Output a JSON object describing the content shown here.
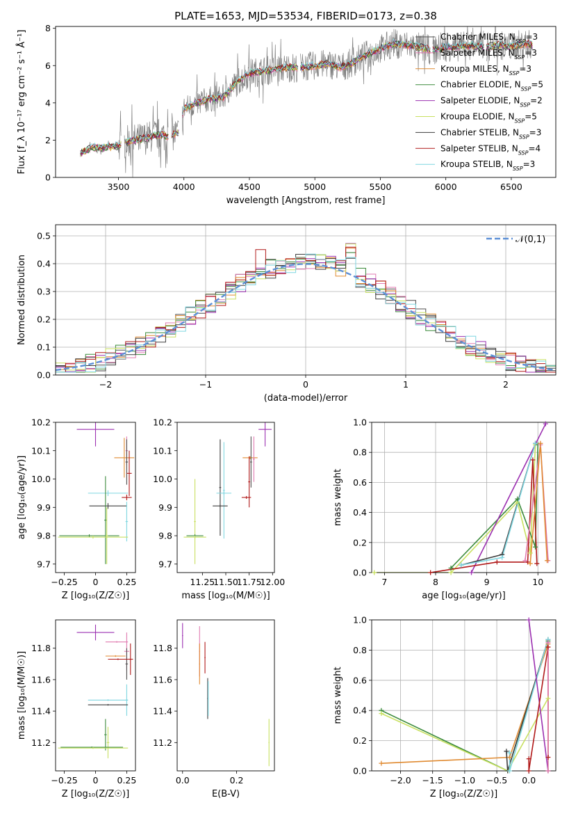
{
  "figure": {
    "title": "PLATE=1653, MJD=53534, FIBERID=0173, z=0.38"
  },
  "colors": {
    "chabrier_miles": "#4d4d4d",
    "salpeter_miles": "#e07ab0",
    "kroupa_miles": "#e08a30",
    "chabrier_elodie": "#3a8a3a",
    "salpeter_elodie": "#9b2fb0",
    "kroupa_elodie": "#c8e060",
    "chabrier_stelib": "#3c3c3c",
    "salpeter_stelib": "#b01818",
    "kroupa_stelib": "#7fd6e0",
    "data": "#808080",
    "normal": "#5b8fd6"
  },
  "chart_data": [
    {
      "id": "spectrum",
      "type": "line",
      "xlabel": "wavelength [Angstrom, rest frame]",
      "ylabel": "Flux [f_λ 10⁻¹⁷ erg cm⁻² s⁻¹ Å⁻¹]",
      "xlim": [
        3020,
        6840
      ],
      "ylim": [
        0,
        8.1
      ],
      "xticks": [
        3500,
        4000,
        4500,
        5000,
        5500,
        6000,
        6500
      ],
      "yticks": [
        0,
        2,
        4,
        6,
        8
      ],
      "legend_position": "top-right",
      "continuum": [
        [
          3210,
          1.3
        ],
        [
          3300,
          1.6
        ],
        [
          3400,
          1.6
        ],
        [
          3500,
          1.7
        ],
        [
          3560,
          1.9
        ],
        [
          3700,
          2.1
        ],
        [
          3800,
          2.3
        ],
        [
          3880,
          2.2
        ],
        [
          3960,
          2.4
        ],
        [
          4000,
          3.7
        ],
        [
          4100,
          4.0
        ],
        [
          4200,
          4.2
        ],
        [
          4300,
          4.3
        ],
        [
          4400,
          5.1
        ],
        [
          4500,
          5.6
        ],
        [
          4600,
          5.7
        ],
        [
          4700,
          5.8
        ],
        [
          4800,
          5.9
        ],
        [
          4900,
          5.9
        ],
        [
          5000,
          6.0
        ],
        [
          5100,
          6.1
        ],
        [
          5200,
          5.9
        ],
        [
          5300,
          6.2
        ],
        [
          5400,
          6.6
        ],
        [
          5500,
          6.9
        ],
        [
          5600,
          7.2
        ],
        [
          5700,
          7.1
        ],
        [
          5800,
          7.0
        ],
        [
          5900,
          6.8
        ],
        [
          6000,
          7.0
        ],
        [
          6100,
          7.0
        ],
        [
          6200,
          7.1
        ],
        [
          6300,
          7.0
        ],
        [
          6400,
          7.1
        ],
        [
          6500,
          7.0
        ],
        [
          6600,
          7.2
        ],
        [
          6660,
          7.1
        ]
      ],
      "series": [
        {
          "name": "Chabrier MILES, N_SSP=3",
          "color_key": "chabrier_miles"
        },
        {
          "name": "Salpeter MILES, N_SSP=3",
          "color_key": "salpeter_miles"
        },
        {
          "name": "Kroupa MILES, N_SSP=3",
          "color_key": "kroupa_miles"
        },
        {
          "name": "Chabrier ELODIE, N_SSP=5",
          "color_key": "chabrier_elodie"
        },
        {
          "name": "Salpeter ELODIE, N_SSP=2",
          "color_key": "salpeter_elodie"
        },
        {
          "name": "Kroupa ELODIE, N_SSP=5",
          "color_key": "kroupa_elodie"
        },
        {
          "name": "Chabrier STELIB, N_SSP=3",
          "color_key": "chabrier_stelib"
        },
        {
          "name": "Salpeter STELIB, N_SSP=4",
          "color_key": "salpeter_stelib"
        },
        {
          "name": "Kroupa STELIB, N_SSP=3",
          "color_key": "kroupa_stelib"
        }
      ]
    },
    {
      "id": "residuals",
      "type": "histogram",
      "xlabel": "(data-model)/error",
      "ylabel": "Normed distribution",
      "xlim": [
        -2.5,
        2.5
      ],
      "ylim": [
        0,
        0.54
      ],
      "xticks": [
        -2,
        -1,
        0,
        1,
        2
      ],
      "yticks": [
        0.0,
        0.1,
        0.2,
        0.3,
        0.4,
        0.5
      ],
      "grid": true,
      "legend_position": "top-right",
      "normal_label": "𝒩(0,1)",
      "bin_width": 0.1,
      "series_keys": [
        "chabrier_miles",
        "salpeter_miles",
        "kroupa_miles",
        "chabrier_elodie",
        "salpeter_elodie",
        "kroupa_elodie",
        "chabrier_stelib",
        "salpeter_stelib",
        "kroupa_stelib"
      ]
    },
    {
      "id": "age_vs_Z",
      "type": "errorbar",
      "xlabel": "Z [log₁₀(Z/Z☉)]",
      "ylabel": "age  [log₁₀(age/yr)]",
      "xlim": [
        -0.32,
        0.32
      ],
      "ylim": [
        9.67,
        10.2
      ],
      "xticks": [
        -0.25,
        0.0,
        0.25
      ],
      "yticks": [
        9.7,
        9.8,
        9.9,
        10.0,
        10.1,
        10.2
      ],
      "points": [
        {
          "k": "salpeter_elodie",
          "x": 0.0,
          "xe": 0.15,
          "y": 10.175,
          "ye": 0.06
        },
        {
          "k": "salpeter_miles",
          "x": 0.25,
          "xe": 0.01,
          "y": 10.1,
          "ye": 0.05
        },
        {
          "k": "kroupa_miles",
          "x": 0.23,
          "xe": 0.08,
          "y": 10.075,
          "ye": 0.07
        },
        {
          "k": "chabrier_miles",
          "x": 0.25,
          "xe": 0.01,
          "y": 10.06,
          "ye": 0.08
        },
        {
          "k": "salpeter_stelib",
          "x": 0.27,
          "xe": 0.02,
          "y": 10.02,
          "ye": 0.08
        },
        {
          "k": "kroupa_stelib",
          "x": 0.1,
          "xe": 0.16,
          "y": 9.95,
          "ye": 0.01
        },
        {
          "k": "salpeter_stelib",
          "x": 0.25,
          "xe": 0.04,
          "y": 9.935,
          "ye": 0.01
        },
        {
          "k": "chabrier_stelib",
          "x": 0.1,
          "xe": 0.15,
          "y": 9.905,
          "ye": 0.01
        },
        {
          "k": "kroupa_stelib",
          "x": 0.25,
          "xe": 0.01,
          "y": 9.85,
          "ye": 0.07
        },
        {
          "k": "chabrier_elodie",
          "x": 0.08,
          "xe": 0.01,
          "y": 9.855,
          "ye": 0.155
        },
        {
          "k": "chabrier_elodie",
          "x": -0.05,
          "xe": 0.24,
          "y": 9.8,
          "ye": 0.005
        },
        {
          "k": "kroupa_elodie",
          "x": -0.02,
          "xe": 0.28,
          "y": 9.795,
          "ye": 0.005
        },
        {
          "k": "kroupa_elodie",
          "x": 0.09,
          "xe": 0.01,
          "y": 9.8,
          "ye": 0.1
        }
      ]
    },
    {
      "id": "age_vs_mass",
      "type": "errorbar",
      "xlabel": "mass [log₁₀(M/M☉)]",
      "ylabel": "",
      "xlim": [
        10.98,
        12.02
      ],
      "ylim": [
        9.67,
        10.2
      ],
      "xticks": [
        11.25,
        11.5,
        11.75,
        12.0
      ],
      "xticklabels": [
        "11.25",
        "11.50",
        "11.75",
        "12.00"
      ],
      "yticks": [
        9.7,
        9.8,
        9.9,
        10.0,
        10.1,
        10.2
      ],
      "points": [
        {
          "k": "salpeter_elodie",
          "x": 11.92,
          "xe": 0.07,
          "y": 10.175,
          "ye": 0.06
        },
        {
          "k": "chabrier_stelib",
          "x": 11.44,
          "xe": 0.01,
          "y": 9.97,
          "ye": 0.17
        },
        {
          "k": "kroupa_stelib",
          "x": 11.48,
          "xe": 0.01,
          "y": 9.96,
          "ye": 0.17
        },
        {
          "k": "kroupa_miles",
          "x": 11.76,
          "xe": 0.08,
          "y": 10.075,
          "ye": 0.005
        },
        {
          "k": "salpeter_miles",
          "x": 11.8,
          "xe": 0.01,
          "y": 10.07,
          "ye": 0.08
        },
        {
          "k": "chabrier_miles",
          "x": 11.77,
          "xe": 0.01,
          "y": 10.06,
          "ye": 0.09
        },
        {
          "k": "kroupa_stelib",
          "x": 11.48,
          "xe": 0.08,
          "y": 9.95,
          "ye": 0.005
        },
        {
          "k": "chabrier_stelib",
          "x": 11.44,
          "xe": 0.08,
          "y": 9.905,
          "ye": 0.005
        },
        {
          "k": "salpeter_stelib",
          "x": 11.72,
          "xe": 0.05,
          "y": 9.935,
          "ye": 0.005
        },
        {
          "k": "salpeter_stelib",
          "x": 11.75,
          "xe": 0.01,
          "y": 9.99,
          "ye": 0.09
        },
        {
          "k": "kroupa_elodie",
          "x": 11.17,
          "xe": 0.01,
          "y": 9.85,
          "ye": 0.15
        },
        {
          "k": "chabrier_elodie",
          "x": 11.17,
          "xe": 0.09,
          "y": 9.8,
          "ye": 0.005
        },
        {
          "k": "kroupa_elodie",
          "x": 11.17,
          "xe": 0.12,
          "y": 9.795,
          "ye": 0.005
        }
      ]
    },
    {
      "id": "mw_vs_age",
      "type": "line",
      "xlabel": "age  [log₁₀(age/yr)]",
      "ylabel": "mass weight",
      "xlim": [
        6.75,
        10.35
      ],
      "ylim": [
        0,
        1.0
      ],
      "xticks": [
        7,
        8,
        9,
        10
      ],
      "yticks": [
        0.0,
        0.2,
        0.4,
        0.6,
        0.8,
        1.0
      ],
      "grid": true,
      "lines": [
        {
          "k": "kroupa_elodie",
          "pts": [
            [
              6.8,
              0.0
            ],
            [
              8.3,
              0.0
            ],
            [
              9.6,
              0.47
            ],
            [
              9.85,
              0.13
            ],
            [
              9.95,
              0.85
            ]
          ]
        },
        {
          "k": "chabrier_elodie",
          "pts": [
            [
              8.3,
              0.03
            ],
            [
              9.6,
              0.49
            ],
            [
              9.95,
              0.17
            ],
            [
              10.0,
              0.85
            ]
          ]
        },
        {
          "k": "salpeter_elodie",
          "pts": [
            [
              8.7,
              0.0
            ],
            [
              10.15,
              0.99
            ]
          ]
        },
        {
          "k": "chabrier_stelib",
          "pts": [
            [
              8.5,
              0.05
            ],
            [
              9.3,
              0.12
            ],
            [
              9.95,
              0.86
            ]
          ]
        },
        {
          "k": "kroupa_stelib",
          "pts": [
            [
              8.5,
              0.05
            ],
            [
              9.3,
              0.1
            ],
            [
              9.95,
              0.86
            ]
          ]
        },
        {
          "k": "salpeter_stelib",
          "pts": [
            [
              7.9,
              0.0
            ],
            [
              9.2,
              0.07
            ],
            [
              9.8,
              0.07
            ],
            [
              9.9,
              0.75
            ],
            [
              9.98,
              0.06
            ]
          ]
        },
        {
          "k": "salpeter_miles",
          "pts": [
            [
              9.75,
              0.08
            ],
            [
              10.05,
              0.85
            ],
            [
              10.2,
              0.08
            ]
          ]
        },
        {
          "k": "kroupa_miles",
          "pts": [
            [
              9.85,
              0.06
            ],
            [
              10.05,
              0.86
            ],
            [
              10.18,
              0.08
            ]
          ]
        }
      ]
    },
    {
      "id": "mass_vs_Z",
      "type": "errorbar",
      "xlabel": "Z [log₁₀(Z/Z☉)]",
      "ylabel": "mass [log₁₀(M/M☉)]",
      "xlim": [
        -0.32,
        0.32
      ],
      "ylim": [
        11.02,
        11.98
      ],
      "xticks": [
        -0.25,
        0.0,
        0.25
      ],
      "yticks": [
        11.2,
        11.4,
        11.6,
        11.8
      ],
      "points": [
        {
          "k": "salpeter_elodie",
          "x": 0.0,
          "xe": 0.15,
          "y": 11.9,
          "ye": 0.05
        },
        {
          "k": "salpeter_miles",
          "x": 0.25,
          "xe": 0.02,
          "y": 11.78,
          "ye": 0.12
        },
        {
          "k": "salpeter_miles",
          "x": 0.17,
          "xe": 0.09,
          "y": 11.84,
          "ye": 0.005
        },
        {
          "k": "kroupa_miles",
          "x": 0.16,
          "xe": 0.08,
          "y": 11.75,
          "ye": 0.005
        },
        {
          "k": "chabrier_miles",
          "x": 0.25,
          "xe": 0.01,
          "y": 11.7,
          "ye": 0.1
        },
        {
          "k": "salpeter_stelib",
          "x": 0.28,
          "xe": 0.02,
          "y": 11.73,
          "ye": 0.1
        },
        {
          "k": "salpeter_stelib",
          "x": 0.18,
          "xe": 0.08,
          "y": 11.73,
          "ye": 0.005
        },
        {
          "k": "kroupa_stelib",
          "x": 0.1,
          "xe": 0.16,
          "y": 11.47,
          "ye": 0.005
        },
        {
          "k": "kroupa_stelib",
          "x": 0.25,
          "xe": 0.01,
          "y": 11.47,
          "ye": 0.1
        },
        {
          "k": "chabrier_stelib",
          "x": 0.1,
          "xe": 0.16,
          "y": 11.44,
          "ye": 0.005
        },
        {
          "k": "chabrier_elodie",
          "x": 0.08,
          "xe": 0.01,
          "y": 11.25,
          "ye": 0.1
        },
        {
          "k": "kroupa_elodie",
          "x": 0.1,
          "xe": 0.01,
          "y": 11.2,
          "ye": 0.1
        },
        {
          "k": "chabrier_elodie",
          "x": -0.03,
          "xe": 0.25,
          "y": 11.17,
          "ye": 0.005
        },
        {
          "k": "kroupa_elodie",
          "x": -0.02,
          "xe": 0.28,
          "y": 11.165,
          "ye": 0.005
        }
      ]
    },
    {
      "id": "mass_vs_EBV",
      "type": "errorbar",
      "xlabel": "E(B-V)",
      "ylabel": "",
      "xlim": [
        -0.02,
        0.34
      ],
      "ylim": [
        11.02,
        11.98
      ],
      "xticks": [
        0.0,
        0.2
      ],
      "xticklabels": [
        "0.0",
        "0.2"
      ],
      "yticks": [
        11.2,
        11.4,
        11.6,
        11.8
      ],
      "points": [
        {
          "k": "salpeter_elodie",
          "x": 0.0,
          "xe": 0.002,
          "y": 11.88,
          "ye": 0.08
        },
        {
          "k": "salpeter_miles",
          "x": 0.063,
          "xe": 0.002,
          "y": 11.78,
          "ye": 0.16
        },
        {
          "k": "kroupa_miles",
          "x": 0.063,
          "xe": 0.002,
          "y": 11.7,
          "ye": 0.13
        },
        {
          "k": "salpeter_stelib",
          "x": 0.083,
          "xe": 0.002,
          "y": 11.74,
          "ye": 0.1
        },
        {
          "k": "chabrier_stelib",
          "x": 0.093,
          "xe": 0.002,
          "y": 11.48,
          "ye": 0.13
        },
        {
          "k": "kroupa_stelib",
          "x": 0.095,
          "xe": 0.002,
          "y": 11.48,
          "ye": 0.11
        },
        {
          "k": "kroupa_elodie",
          "x": 0.32,
          "xe": 0.002,
          "y": 11.2,
          "ye": 0.15
        }
      ]
    },
    {
      "id": "mw_vs_Z",
      "type": "line",
      "xlabel": "Z [log₁₀(Z/Z☉)]",
      "ylabel": "mass weight",
      "xlim": [
        -2.45,
        0.42
      ],
      "ylim": [
        0,
        1.0
      ],
      "xticks": [
        -2.0,
        -1.5,
        -1.0,
        -0.5,
        0.0
      ],
      "xticklabels": [
        "−2.0",
        "−1.5",
        "−1.0",
        "−0.5",
        "0.0"
      ],
      "yticks": [
        0.0,
        0.2,
        0.4,
        0.6,
        0.8,
        1.0
      ],
      "grid": true,
      "lines": [
        {
          "k": "chabrier_elodie",
          "pts": [
            [
              -2.3,
              0.4
            ],
            [
              -0.33,
              0.0
            ],
            [
              0.3,
              0.86
            ]
          ]
        },
        {
          "k": "kroupa_elodie",
          "pts": [
            [
              -2.3,
              0.38
            ],
            [
              -0.33,
              0.0
            ],
            [
              0.3,
              0.48
            ],
            [
              0.3,
              0.0
            ]
          ]
        },
        {
          "k": "kroupa_miles",
          "pts": [
            [
              -2.3,
              0.05
            ],
            [
              -0.3,
              0.09
            ],
            [
              0.3,
              0.84
            ]
          ]
        },
        {
          "k": "chabrier_stelib",
          "pts": [
            [
              -0.35,
              0.13
            ],
            [
              -0.33,
              0.0
            ],
            [
              0.3,
              0.87
            ]
          ]
        },
        {
          "k": "kroupa_stelib",
          "pts": [
            [
              -0.3,
              0.12
            ],
            [
              -0.3,
              0.0
            ],
            [
              0.3,
              0.87
            ]
          ]
        },
        {
          "k": "salpeter_elodie",
          "pts": [
            [
              0.0,
              1.0
            ],
            [
              0.3,
              0.0
            ]
          ]
        },
        {
          "k": "salpeter_stelib",
          "pts": [
            [
              0.0,
              0.08
            ],
            [
              0.0,
              0.0
            ],
            [
              0.3,
              0.82
            ],
            [
              0.3,
              0.09
            ]
          ]
        },
        {
          "k": "salpeter_miles",
          "pts": [
            [
              0.3,
              0.85
            ],
            [
              0.3,
              0.0
            ]
          ]
        }
      ]
    }
  ]
}
